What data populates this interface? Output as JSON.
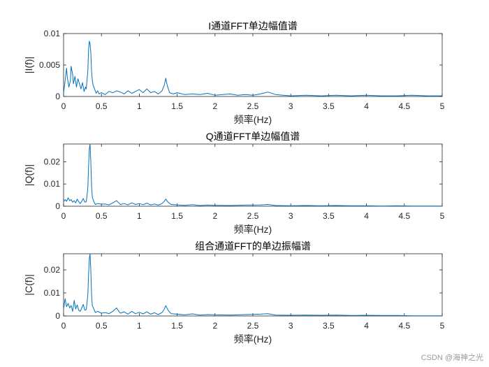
{
  "figure": {
    "watermark": "CSDN @海神之光"
  },
  "chart_data": [
    {
      "type": "line",
      "title": "I通道FFT单边幅值谱",
      "xlabel": "频率(Hz)",
      "ylabel": "|I(f)|",
      "xlim": [
        0,
        5
      ],
      "ylim": [
        0,
        0.01
      ],
      "xticks": [
        0,
        0.5,
        1,
        1.5,
        2,
        2.5,
        3,
        3.5,
        4,
        4.5,
        5
      ],
      "xtick_labels": [
        "0",
        "0.5",
        "1",
        "1.5",
        "2",
        "2.5",
        "3",
        "3.5",
        "4",
        "4.5",
        "5"
      ],
      "yticks": [
        0,
        0.005,
        0.01
      ],
      "ytick_labels": [
        "0",
        "0.005",
        "0.01"
      ],
      "grid": false,
      "line_color": "#0072BD",
      "series": [
        {
          "x": [
            0,
            0.02,
            0.04,
            0.05,
            0.07,
            0.09,
            0.1,
            0.12,
            0.13,
            0.15,
            0.17,
            0.19,
            0.21,
            0.23,
            0.25,
            0.27,
            0.29,
            0.3,
            0.32,
            0.33,
            0.34,
            0.35,
            0.36,
            0.37,
            0.38,
            0.39,
            0.41,
            0.43,
            0.45,
            0.47,
            0.5,
            0.55,
            0.6,
            0.65,
            0.7,
            0.75,
            0.8,
            0.85,
            0.9,
            0.95,
            1.0,
            1.05,
            1.1,
            1.15,
            1.2,
            1.25,
            1.3,
            1.33,
            1.35,
            1.37,
            1.4,
            1.45,
            1.5,
            1.6,
            1.7,
            1.8,
            1.9,
            2.0,
            2.1,
            2.2,
            2.3,
            2.4,
            2.5,
            2.6,
            2.7,
            2.8,
            2.9,
            3.0,
            3.2,
            3.4,
            3.6,
            3.8,
            4.0,
            4.2,
            4.4,
            4.6,
            4.8,
            5.0
          ],
          "y": [
            0.0005,
            0.0025,
            0.0045,
            0.003,
            0.0015,
            0.0025,
            0.0048,
            0.0035,
            0.002,
            0.0032,
            0.0015,
            0.0028,
            0.002,
            0.0012,
            0.0022,
            0.0008,
            0.0015,
            0.0012,
            0.004,
            0.0075,
            0.0088,
            0.0084,
            0.007,
            0.004,
            0.0025,
            0.0018,
            0.0012,
            0.0005,
            0.0009,
            0.0004,
            0.0006,
            0.0003,
            0.0008,
            0.0006,
            0.0009,
            0.0007,
            0.0004,
            0.0009,
            0.0005,
            0.0008,
            0.0011,
            0.0006,
            0.0012,
            0.0006,
            0.0008,
            0.0004,
            0.0009,
            0.0018,
            0.0029,
            0.0017,
            0.0006,
            0.0004,
            0.0006,
            0.0003,
            0.0004,
            0.0003,
            0.0005,
            0.0002,
            0.0003,
            0.0004,
            0.0002,
            0.0003,
            0.0002,
            0.0004,
            0.0007,
            0.0003,
            0.0002,
            0.0001,
            0.0002,
            0.0001,
            0.0002,
            0.0001,
            0.0002,
            0.0001,
            0.0001,
            0.0002,
            0.0001,
            0.0001
          ]
        }
      ]
    },
    {
      "type": "line",
      "title": "Q通道FFT单边幅值谱",
      "xlabel": "频率(Hz)",
      "ylabel": "|Q(f)|",
      "xlim": [
        0,
        5
      ],
      "ylim": [
        0,
        0.028
      ],
      "xticks": [
        0,
        0.5,
        1,
        1.5,
        2,
        2.5,
        3,
        3.5,
        4,
        4.5,
        5
      ],
      "xtick_labels": [
        "0",
        "0.5",
        "1",
        "1.5",
        "2",
        "2.5",
        "3",
        "3.5",
        "4",
        "4.5",
        "5"
      ],
      "yticks": [
        0,
        0.01,
        0.02
      ],
      "ytick_labels": [
        "0",
        "0.01",
        "0.02"
      ],
      "grid": false,
      "line_color": "#0072BD",
      "series": [
        {
          "x": [
            0,
            0.02,
            0.04,
            0.06,
            0.08,
            0.1,
            0.12,
            0.14,
            0.16,
            0.18,
            0.2,
            0.22,
            0.24,
            0.26,
            0.28,
            0.3,
            0.32,
            0.33,
            0.34,
            0.35,
            0.36,
            0.37,
            0.38,
            0.4,
            0.42,
            0.45,
            0.5,
            0.55,
            0.6,
            0.65,
            0.7,
            0.72,
            0.75,
            0.8,
            0.85,
            0.9,
            0.95,
            1.0,
            1.05,
            1.1,
            1.15,
            1.2,
            1.25,
            1.3,
            1.33,
            1.35,
            1.38,
            1.42,
            1.5,
            1.6,
            1.7,
            1.8,
            1.9,
            2.0,
            2.2,
            2.4,
            2.6,
            2.7,
            2.8,
            3.0,
            3.2,
            3.4,
            3.6,
            3.8,
            4.0,
            4.2,
            4.4,
            4.6,
            4.8,
            5.0
          ],
          "y": [
            0.002,
            0.003,
            0.0022,
            0.0038,
            0.0025,
            0.003,
            0.0018,
            0.0025,
            0.0015,
            0.0032,
            0.002,
            0.0012,
            0.0022,
            0.0035,
            0.0018,
            0.002,
            0.008,
            0.018,
            0.026,
            0.028,
            0.02,
            0.009,
            0.004,
            0.002,
            0.0008,
            0.0012,
            0.0009,
            0.001,
            0.0006,
            0.0015,
            0.0025,
            0.0018,
            0.0008,
            0.0012,
            0.0006,
            0.0015,
            0.0008,
            0.0012,
            0.0007,
            0.0014,
            0.0006,
            0.001,
            0.0005,
            0.0012,
            0.0022,
            0.0032,
            0.0018,
            0.0008,
            0.0006,
            0.0004,
            0.0007,
            0.0003,
            0.0005,
            0.0004,
            0.0003,
            0.0005,
            0.0006,
            0.0008,
            0.0003,
            0.0002,
            0.0003,
            0.0002,
            0.0003,
            0.0002,
            0.0002,
            0.0001,
            0.0002,
            0.0001,
            0.0001,
            0.0001
          ]
        }
      ]
    },
    {
      "type": "line",
      "title": "组合通道FFT的单边振幅谱",
      "xlabel": "频率(Hz)",
      "ylabel": "|C(f)|",
      "xlim": [
        0,
        5
      ],
      "ylim": [
        0,
        0.027
      ],
      "xticks": [
        0,
        0.5,
        1,
        1.5,
        2,
        2.5,
        3,
        3.5,
        4,
        4.5,
        5
      ],
      "xtick_labels": [
        "0",
        "0.5",
        "1",
        "1.5",
        "2",
        "2.5",
        "3",
        "3.5",
        "4",
        "4.5",
        "5"
      ],
      "yticks": [
        0,
        0.01,
        0.02
      ],
      "ytick_labels": [
        "0",
        "0.01",
        "0.02"
      ],
      "grid": false,
      "line_color": "#0072BD",
      "series": [
        {
          "x": [
            0,
            0.02,
            0.04,
            0.06,
            0.08,
            0.1,
            0.12,
            0.14,
            0.16,
            0.18,
            0.2,
            0.22,
            0.24,
            0.26,
            0.28,
            0.3,
            0.32,
            0.33,
            0.34,
            0.35,
            0.36,
            0.37,
            0.38,
            0.4,
            0.42,
            0.45,
            0.5,
            0.55,
            0.6,
            0.65,
            0.7,
            0.72,
            0.75,
            0.8,
            0.85,
            0.9,
            0.95,
            1.0,
            1.05,
            1.1,
            1.15,
            1.2,
            1.25,
            1.3,
            1.33,
            1.35,
            1.38,
            1.42,
            1.5,
            1.6,
            1.7,
            1.8,
            1.9,
            2.0,
            2.2,
            2.4,
            2.6,
            2.7,
            2.8,
            3.0,
            3.2,
            3.4,
            3.6,
            3.8,
            4.0,
            4.2,
            4.4,
            4.6,
            4.8,
            5.0
          ],
          "y": [
            0.003,
            0.0075,
            0.004,
            0.0055,
            0.0035,
            0.0045,
            0.002,
            0.0068,
            0.003,
            0.0048,
            0.0025,
            0.002,
            0.0035,
            0.005,
            0.0025,
            0.0028,
            0.009,
            0.018,
            0.025,
            0.027,
            0.02,
            0.009,
            0.0045,
            0.003,
            0.0015,
            0.002,
            0.0012,
            0.0015,
            0.001,
            0.002,
            0.0035,
            0.0025,
            0.0012,
            0.0018,
            0.0008,
            0.002,
            0.001,
            0.0016,
            0.0009,
            0.0018,
            0.0008,
            0.0014,
            0.0006,
            0.0015,
            0.003,
            0.0045,
            0.0025,
            0.001,
            0.0008,
            0.0005,
            0.0009,
            0.0004,
            0.0006,
            0.0005,
            0.0004,
            0.0006,
            0.0008,
            0.001,
            0.0004,
            0.0003,
            0.0004,
            0.0003,
            0.0004,
            0.0002,
            0.0003,
            0.0002,
            0.0002,
            0.0001,
            0.0001,
            0.0001
          ]
        }
      ]
    }
  ]
}
